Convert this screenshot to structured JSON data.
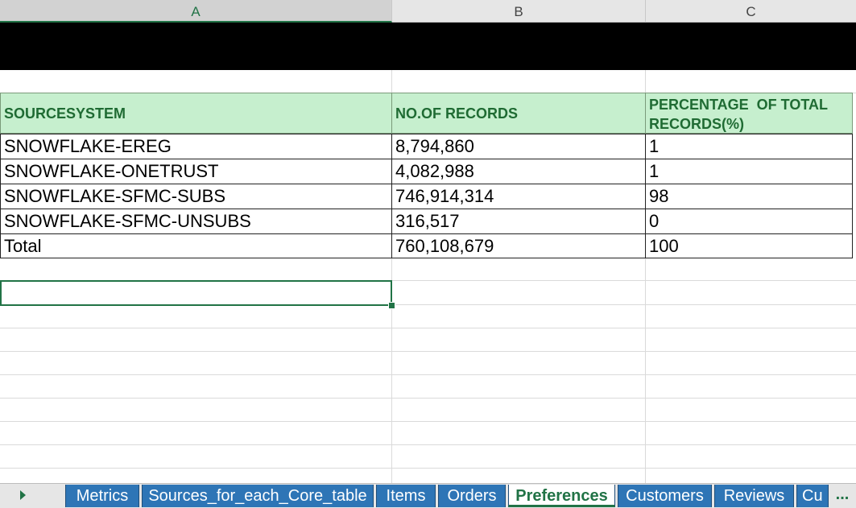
{
  "columns": [
    "A",
    "B",
    "C"
  ],
  "table": {
    "headers": [
      "SOURCESYSTEM",
      "NO.OF RECORDS",
      "PERCENTAGE  OF TOTAL",
      "RECORDS(%)"
    ],
    "rows": [
      [
        "SNOWFLAKE-EREG",
        "8,794,860",
        "1"
      ],
      [
        "SNOWFLAKE-ONETRUST",
        "4,082,988",
        "1"
      ],
      [
        "SNOWFLAKE-SFMC-SUBS",
        "746,914,314",
        "98"
      ],
      [
        "SNOWFLAKE-SFMC-UNSUBS",
        "316,517",
        "0"
      ],
      [
        "Total",
        "760,108,679",
        "100"
      ]
    ]
  },
  "tabs": [
    "Metrics",
    "Sources_for_each_Core_table",
    "Items",
    "Orders",
    "Preferences",
    "Customers",
    "Reviews",
    "Cu"
  ],
  "active_tab": "Preferences",
  "more_tabs": "...",
  "colors": {
    "accent": "#217346",
    "tab_blue": "#2e75b6",
    "header_fill": "#c6efce"
  }
}
